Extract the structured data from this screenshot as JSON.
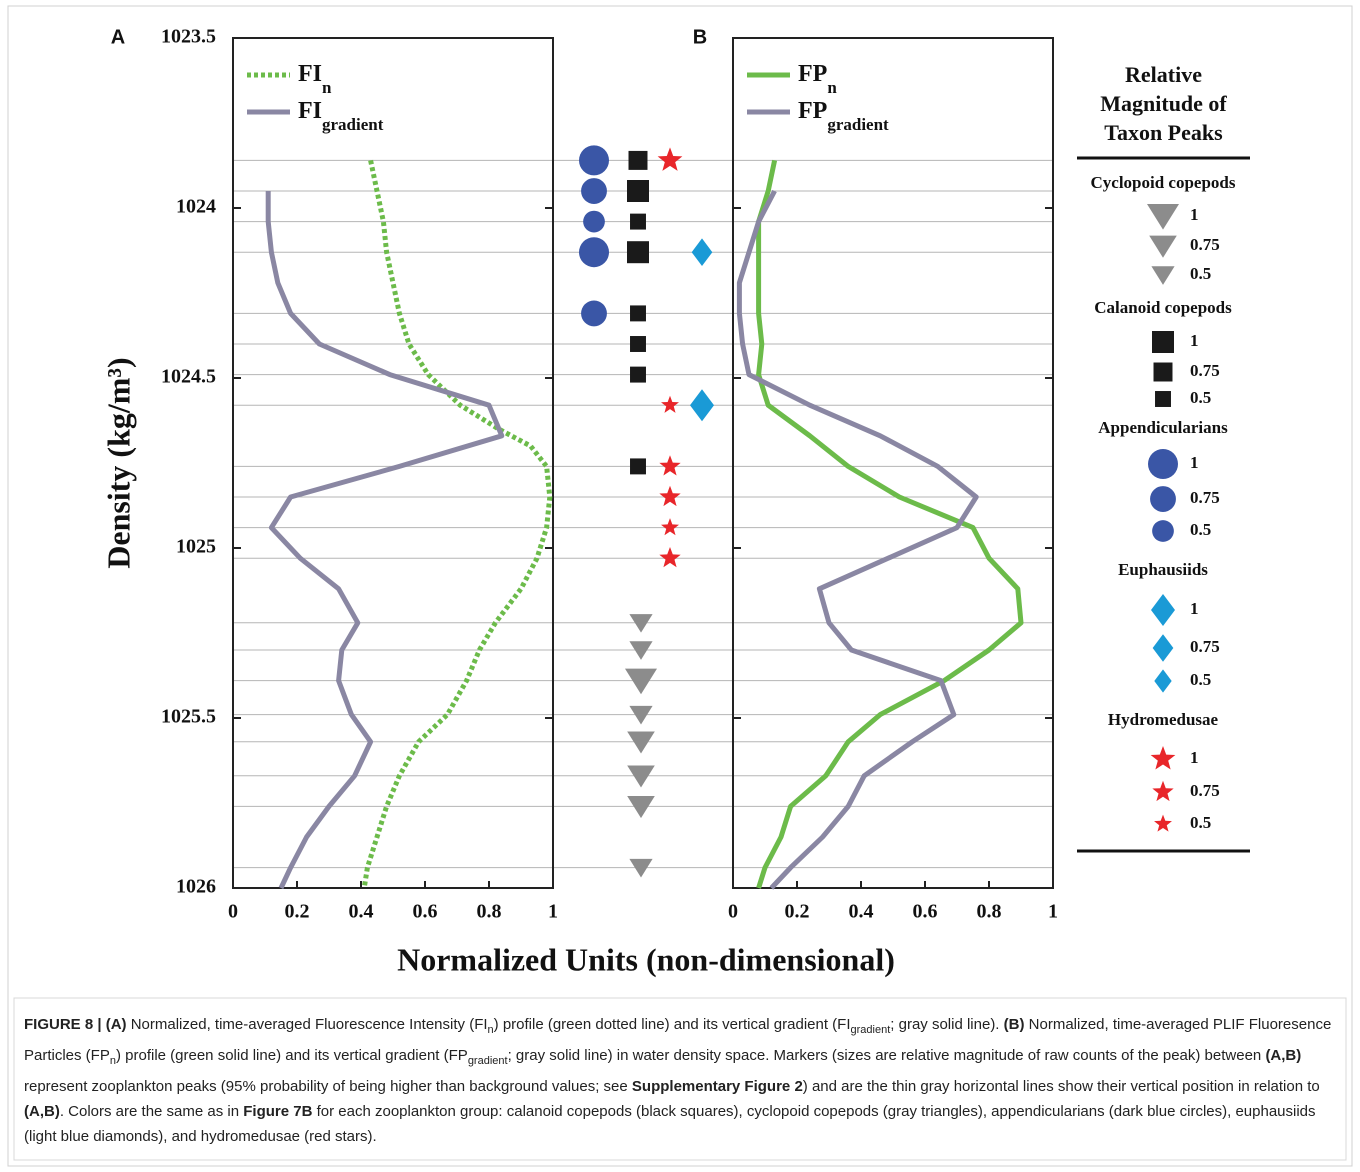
{
  "chart_data": {
    "type": "profile",
    "y_label": "Density (kg/m³)",
    "x_label": "Normalized Units (non-dimensional)",
    "ylim": [
      1023.5,
      1026
    ],
    "yticks": [
      1023.5,
      1024,
      1024.5,
      1025,
      1025.5,
      1026
    ],
    "xlim": [
      0,
      1
    ],
    "xticks": [
      0,
      0.2,
      0.4,
      0.6,
      0.8,
      1
    ],
    "panels": [
      {
        "label": "A",
        "series": [
          {
            "name": "FI",
            "subscript": "n",
            "color": "#6cbb4a",
            "style": "dotted",
            "x": [
              0.43,
              0.45,
              0.47,
              0.48,
              0.5,
              0.52,
              0.55,
              0.61,
              0.71,
              0.83,
              0.93,
              0.98,
              0.99,
              0.98,
              0.95,
              0.9,
              0.82,
              0.77,
              0.73,
              0.67,
              0.58,
              0.52,
              0.48,
              0.45,
              0.42,
              0.41
            ],
            "y": [
              1023.86,
              1023.95,
              1024.04,
              1024.13,
              1024.22,
              1024.31,
              1024.4,
              1024.49,
              1024.58,
              1024.65,
              1024.7,
              1024.76,
              1024.85,
              1024.94,
              1025.03,
              1025.12,
              1025.22,
              1025.3,
              1025.39,
              1025.49,
              1025.57,
              1025.67,
              1025.76,
              1025.85,
              1025.94,
              1026
            ]
          },
          {
            "name": "FI",
            "subscript": "gradient",
            "color": "#8a87a3",
            "style": "solid",
            "x": [
              0.11,
              0.11,
              0.12,
              0.14,
              0.18,
              0.27,
              0.49,
              0.8,
              0.84,
              0.52,
              0.18,
              0.12,
              0.21,
              0.33,
              0.39,
              0.34,
              0.33,
              0.37,
              0.43,
              0.38,
              0.3,
              0.23,
              0.18,
              0.15
            ],
            "y": [
              1023.95,
              1024.04,
              1024.13,
              1024.22,
              1024.31,
              1024.4,
              1024.49,
              1024.58,
              1024.67,
              1024.76,
              1024.85,
              1024.94,
              1025.03,
              1025.12,
              1025.22,
              1025.3,
              1025.39,
              1025.49,
              1025.57,
              1025.67,
              1025.76,
              1025.85,
              1025.94,
              1026
            ]
          }
        ]
      },
      {
        "label": "B",
        "series": [
          {
            "name": "FP",
            "subscript": "n",
            "color": "#6cbb4a",
            "style": "solid",
            "x": [
              0.13,
              0.11,
              0.08,
              0.08,
              0.08,
              0.08,
              0.09,
              0.08,
              0.11,
              0.24,
              0.36,
              0.52,
              0.75,
              0.8,
              0.89,
              0.9,
              0.8,
              0.66,
              0.46,
              0.36,
              0.29,
              0.18,
              0.15,
              0.1,
              0.08
            ],
            "y": [
              1023.86,
              1023.95,
              1024.04,
              1024.13,
              1024.22,
              1024.31,
              1024.4,
              1024.49,
              1024.58,
              1024.67,
              1024.76,
              1024.85,
              1024.94,
              1025.03,
              1025.12,
              1025.22,
              1025.3,
              1025.39,
              1025.49,
              1025.57,
              1025.67,
              1025.76,
              1025.85,
              1025.94,
              1026
            ]
          },
          {
            "name": "FP",
            "subscript": "gradient",
            "color": "#8a87a3",
            "style": "solid",
            "x": [
              0.13,
              0.08,
              0.05,
              0.02,
              0.02,
              0.03,
              0.05,
              0.24,
              0.46,
              0.64,
              0.76,
              0.7,
              0.27,
              0.3,
              0.37,
              0.65,
              0.69,
              0.56,
              0.41,
              0.36,
              0.28,
              0.18,
              0.12
            ],
            "y": [
              1023.95,
              1024.04,
              1024.13,
              1024.22,
              1024.31,
              1024.4,
              1024.49,
              1024.58,
              1024.67,
              1024.76,
              1024.85,
              1024.94,
              1025.12,
              1025.22,
              1025.3,
              1025.39,
              1025.49,
              1025.57,
              1025.67,
              1025.76,
              1025.85,
              1025.94,
              1026
            ]
          }
        ]
      }
    ],
    "legend_title": "Relative Magnitude of Taxon Peaks",
    "legend_magnitudes": [
      1,
      0.75,
      0.5
    ],
    "taxa": [
      {
        "name": "Cyclopoid copepods",
        "shape": "triangle",
        "color": "#8c8c8c",
        "density": [
          1025.22,
          1025.3,
          1025.39,
          1025.49,
          1025.57,
          1025.67,
          1025.76,
          1025.94
        ],
        "magnitude": [
          0.5,
          0.5,
          1,
          0.5,
          0.75,
          0.75,
          0.75,
          0.5
        ]
      },
      {
        "name": "Calanoid copepods",
        "shape": "square",
        "color": "#1a1a1a",
        "density": [
          1023.86,
          1023.95,
          1024.04,
          1024.13,
          1024.31,
          1024.4,
          1024.49,
          1024.76
        ],
        "magnitude": [
          0.75,
          1,
          0.5,
          1,
          0.5,
          0.5,
          0.5,
          0.5
        ]
      },
      {
        "name": "Appendicularians",
        "shape": "circle",
        "color": "#3a56a6",
        "density": [
          1023.86,
          1023.95,
          1024.04,
          1024.13,
          1024.31
        ],
        "magnitude": [
          1,
          0.75,
          0.5,
          1,
          0.75
        ]
      },
      {
        "name": "Euphausiids",
        "shape": "diamond",
        "color": "#1a9ad6",
        "density": [
          1024.13,
          1024.58
        ],
        "magnitude": [
          0.75,
          1
        ]
      },
      {
        "name": "Hydromedusae",
        "shape": "star",
        "color": "#e8262a",
        "density": [
          1023.86,
          1024.58,
          1024.76,
          1024.85,
          1024.94,
          1025.03
        ],
        "magnitude": [
          1,
          0.5,
          0.75,
          0.75,
          0.5,
          0.75
        ]
      }
    ]
  },
  "caption": {
    "runs": [
      {
        "text": "FIGURE 8 | (A)",
        "bold": true
      },
      {
        "text": " Normalized, time-averaged Fluorescence Intensity (FI"
      },
      {
        "text": "n",
        "sub": true
      },
      {
        "text": ") profile (green dotted line) and its vertical gradient (FI"
      },
      {
        "text": "gradient",
        "sub": true
      },
      {
        "text": "; gray solid line). "
      },
      {
        "text": "(B)",
        "bold": true
      },
      {
        "text": " Normalized, time-averaged PLIF Fluoresence Particles (FP"
      },
      {
        "text": "n",
        "sub": true
      },
      {
        "text": ") profile (green solid line) and its vertical gradient (FP"
      },
      {
        "text": "gradient",
        "sub": true
      },
      {
        "text": "; gray solid line) in water density space. Markers (sizes are relative magnitude of raw counts of the peak) between "
      },
      {
        "text": "(A,B)",
        "bold": true
      },
      {
        "text": " represent zooplankton peaks (95% probability of being higher than background values; see "
      },
      {
        "text": "Supplementary Figure 2",
        "bold": true
      },
      {
        "text": ") and are the thin gray horizontal lines show their vertical position in relation to "
      },
      {
        "text": "(A,B)",
        "bold": true
      },
      {
        "text": ". Colors are the same as in "
      },
      {
        "text": "Figure 7B",
        "bold": true
      },
      {
        "text": " for each zooplankton group: calanoid copepods (black squares), cyclopoid copepods (gray triangles), appendicularians (dark blue circles), euphausiids (light blue diamonds), and hydromedusae (red stars)."
      }
    ]
  }
}
